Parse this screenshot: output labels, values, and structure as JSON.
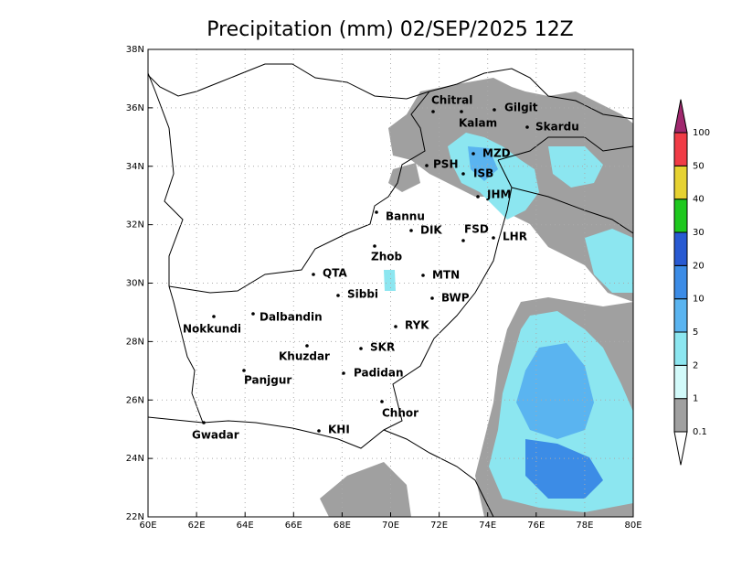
{
  "title": "Precipitation (mm) 02/SEP/2025 12Z",
  "map": {
    "xlim": [
      60,
      80
    ],
    "ylim": [
      22,
      38
    ],
    "xticks": [
      {
        "value": 60,
        "label": "60E"
      },
      {
        "value": 62,
        "label": "62E"
      },
      {
        "value": 64,
        "label": "64E"
      },
      {
        "value": 66,
        "label": "66E"
      },
      {
        "value": 68,
        "label": "68E"
      },
      {
        "value": 70,
        "label": "70E"
      },
      {
        "value": 72,
        "label": "72E"
      },
      {
        "value": 74,
        "label": "74E"
      },
      {
        "value": 76,
        "label": "76E"
      },
      {
        "value": 78,
        "label": "78E"
      },
      {
        "value": 80,
        "label": "80E"
      }
    ],
    "yticks": [
      {
        "value": 22,
        "label": "22N"
      },
      {
        "value": 24,
        "label": "24N"
      },
      {
        "value": 26,
        "label": "26N"
      },
      {
        "value": 28,
        "label": "28N"
      },
      {
        "value": 30,
        "label": "30N"
      },
      {
        "value": 32,
        "label": "32N"
      },
      {
        "value": 34,
        "label": "34N"
      },
      {
        "value": 36,
        "label": "36N"
      },
      {
        "value": 38,
        "label": "38N"
      }
    ],
    "grid": true,
    "cities": [
      "Chitral",
      "Kalam",
      "Gilgit",
      "Skardu",
      "MZD",
      "PSH",
      "ISB",
      "JHM",
      "Bannu",
      "DIK",
      "FSD",
      "LHR",
      "Zhob",
      "QTA",
      "MTN",
      "Sibbi",
      "BWP",
      "Nokkundi",
      "Dalbandin",
      "RYK",
      "Khuzdar",
      "SKR",
      "Padidan",
      "Panjgur",
      "Chhor",
      "KHI",
      "Gwadar"
    ]
  },
  "colorbar": {
    "levels": [
      0.1,
      1,
      2,
      5,
      10,
      20,
      30,
      40,
      50,
      100
    ],
    "colors": [
      "#ffffff",
      "#a0a0a0",
      "#d2fafa",
      "#8ce6f0",
      "#5ab4f0",
      "#3c8ce6",
      "#285ad2",
      "#1ec81e",
      "#e6d232",
      "#f03c46",
      "#a0286e"
    ]
  }
}
